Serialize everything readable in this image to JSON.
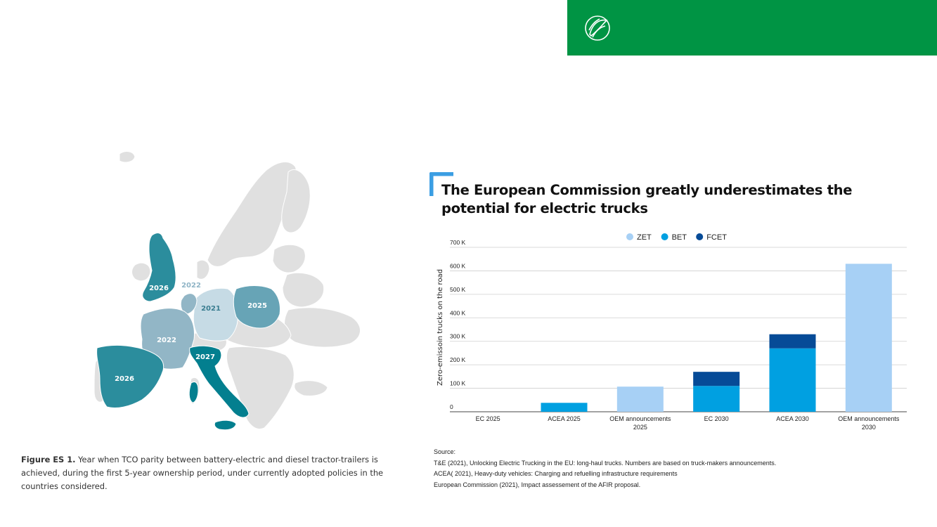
{
  "brand": {
    "color": "#009444",
    "logo_icon": "circle-leaf-logo-icon"
  },
  "map": {
    "colors": {
      "land": "#e0e0e0",
      "y2021": "#c6dbe5",
      "y2022": "#92b6c6",
      "y2025": "#67a4b6",
      "y2026": "#2b8d9d",
      "y2027": "#037f8f"
    },
    "labels": {
      "uk": "2026",
      "benelux": "2022",
      "germany": "2021",
      "poland": "2025",
      "france": "2022",
      "italy": "2027",
      "spain": "2026"
    }
  },
  "figure_caption": {
    "label": "Figure ES 1.",
    "text": " Year when TCO parity between battery-electric and diesel tractor-trailers is achieved, during the first 5-year ownership period, under currently adopted policies in the countries considered."
  },
  "chart_data": {
    "type": "bar",
    "stacked": true,
    "title": "The European Commission greatly underestimates the potential for electric trucks",
    "ylabel": "Zero-emissoin trucks on the road",
    "ylim": [
      0,
      700000
    ],
    "yticks": [
      "0",
      "100 K",
      "200 K",
      "300 K",
      "400 K",
      "500 K",
      "600 K",
      "700 K"
    ],
    "legend_position": "top-center",
    "categories": [
      [
        "EC 2025"
      ],
      [
        "ACEA 2025"
      ],
      [
        "OEM announcements",
        "2025"
      ],
      [
        "EC 2030"
      ],
      [
        "ACEA 2030"
      ],
      [
        "OEM announcements",
        "2030"
      ]
    ],
    "series": [
      {
        "name": "ZET",
        "color": "#a7d0f5",
        "values": [
          0,
          0,
          107000,
          0,
          0,
          630000
        ]
      },
      {
        "name": "BET",
        "color": "#00a0e1",
        "values": [
          0,
          38000,
          0,
          110000,
          270000,
          0
        ]
      },
      {
        "name": "FCET",
        "color": "#064b97",
        "values": [
          0,
          0,
          0,
          60000,
          60000,
          0
        ]
      }
    ]
  },
  "sources": {
    "heading": "Source:",
    "lines": [
      "T&E (2021), Unlocking Electric Trucking in the EU: long-haul trucks. Numbers are based on truck-makers announcements.",
      "ACEA( 2021),  Heavy-duty vehicles: Charging and refuelling infrastructure requirements",
      "European Commission (2021),  Impact assessement of the AFIR proposal."
    ]
  }
}
